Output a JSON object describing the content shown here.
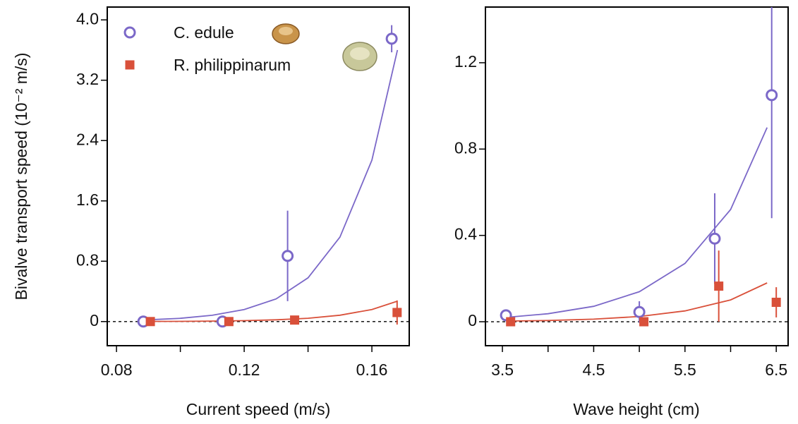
{
  "chart_data": [
    {
      "type": "scatter",
      "ylabel": "Bivalve transport speed (10⁻² m/s)",
      "xlabel": "Current speed (m/s)",
      "xlim": [
        0.0771,
        0.1717
      ],
      "ylim": [
        -0.32,
        4.17
      ],
      "xticks": [
        0.08,
        {
          "value": 0.1,
          "label": null
        },
        0.12,
        {
          "value": 0.14,
          "label": null
        },
        0.16
      ],
      "yticks": [
        0,
        0.8,
        1.6,
        2.4,
        3.2,
        {
          "value": 4,
          "label": "4.0"
        }
      ],
      "hline": 0,
      "legend": "upper left",
      "series": [
        {
          "name": "C. edule",
          "color": "#7b68c8",
          "marker": "open-circle",
          "x": [
            0.0884,
            0.1132,
            0.1336,
            0.1662
          ],
          "values": [
            0,
            0,
            0.87,
            3.75
          ],
          "errors": [
            0.02,
            0.02,
            0.6,
            0.18
          ]
        },
        {
          "name": "R. philippinarum",
          "color": "#d9503a",
          "marker": "square",
          "x": [
            0.0906,
            0.1152,
            0.1358,
            0.1679
          ],
          "values": [
            0,
            0,
            0.02,
            0.12
          ],
          "errors": [
            null,
            null,
            null,
            0.16
          ]
        }
      ],
      "fits": [
        {
          "color": "#7b68c8",
          "x": [
            0.088,
            0.1,
            0.11,
            0.12,
            0.13,
            0.14,
            0.15,
            0.16,
            0.168
          ],
          "values": [
            0.02,
            0.043,
            0.083,
            0.16,
            0.3,
            0.58,
            1.12,
            2.14,
            3.6
          ]
        },
        {
          "color": "#d9503a",
          "x": [
            0.088,
            0.1,
            0.11,
            0.12,
            0.13,
            0.14,
            0.15,
            0.16,
            0.168
          ],
          "values": [
            0.0015,
            0.003,
            0.006,
            0.012,
            0.023,
            0.044,
            0.084,
            0.16,
            0.27
          ]
        }
      ]
    },
    {
      "type": "scatter",
      "xlabel": "Wave height (cm)",
      "xlim": [
        3.314,
        6.63
      ],
      "ylim": [
        -0.111,
        1.458
      ],
      "xticks": [
        3.5,
        {
          "value": 4,
          "label": null
        },
        4.5,
        {
          "value": 5,
          "label": null
        },
        5.5,
        {
          "value": 6,
          "label": null
        },
        6.5
      ],
      "yticks": [
        0,
        0.4,
        0.8,
        1.2
      ],
      "hline": 0,
      "series": [
        {
          "color": "#7b68c8",
          "marker": "open-circle",
          "x": [
            3.539,
            5.0,
            5.826,
            6.45
          ],
          "values": [
            0.03,
            0.045,
            0.385,
            1.05
          ],
          "errors": [
            0.01,
            0.05,
            0.21,
            0.57
          ]
        },
        {
          "color": "#d9503a",
          "marker": "square",
          "x": [
            3.59,
            5.05,
            5.87,
            6.5
          ],
          "values": [
            0,
            0,
            0.165,
            0.09
          ],
          "errors": [
            null,
            null,
            0.165,
            0.07
          ]
        }
      ],
      "fits": [
        {
          "color": "#7b68c8",
          "x": [
            3.54,
            4,
            4.5,
            5,
            5.5,
            6,
            6.4
          ],
          "values": [
            0.02,
            0.037,
            0.0714,
            0.139,
            0.27,
            0.52,
            0.9
          ]
        },
        {
          "color": "#d9503a",
          "x": [
            3.54,
            4,
            4.5,
            5,
            5.5,
            6,
            6.4
          ],
          "values": [
            0.003,
            0.0058,
            0.0119,
            0.0243,
            0.05,
            0.101,
            0.18
          ]
        }
      ]
    }
  ]
}
